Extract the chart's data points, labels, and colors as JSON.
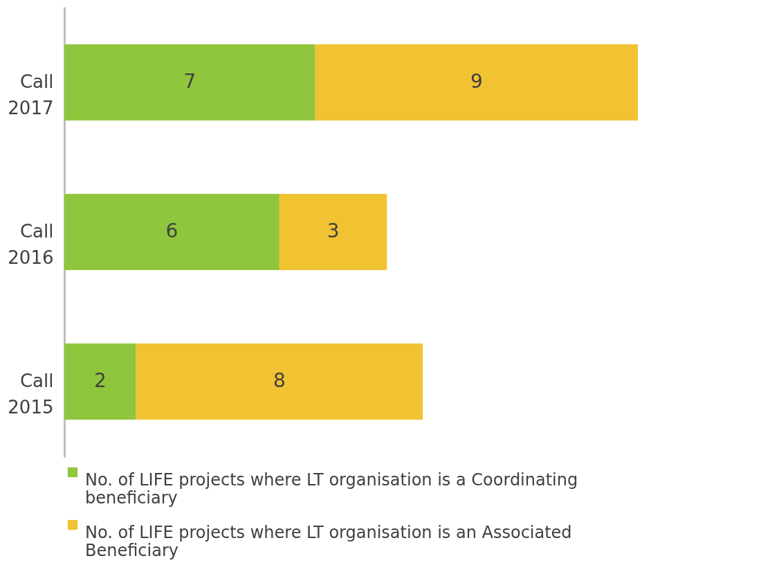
{
  "chart_data": {
    "type": "bar",
    "orientation": "horizontal",
    "stacked": true,
    "data_labels": true,
    "legend": "bottom",
    "grid": false,
    "categories": [
      "Call 2017",
      "Call 2016",
      "Call 2015"
    ],
    "series": [
      {
        "name": "No. of LIFE projects where LT organisation is a Coordinating beneficiary",
        "color": "#8fc63d",
        "values": [
          7,
          6,
          2
        ]
      },
      {
        "name": "No. of LIFE projects where LT organisation is an Associated Beneficiary",
        "color": "#f1c232",
        "values": [
          9,
          3,
          8
        ]
      }
    ]
  }
}
